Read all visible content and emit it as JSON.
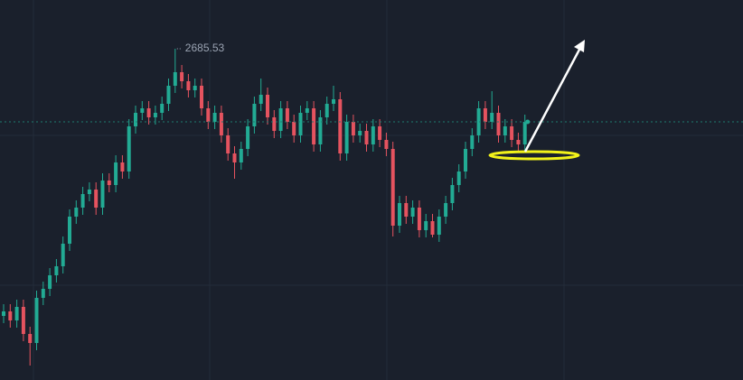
{
  "chart_data": {
    "type": "candlestick",
    "up_color": "#22ab94",
    "down_color": "#e5535f",
    "ylim": [
      2593.78,
      2699.03
    ],
    "open": [
      2611.53,
      2612.78,
      2610.28,
      2614.03,
      2606.53,
      2604.03,
      2616.53,
      2619.03,
      2622.78,
      2625.28,
      2631.53,
      2639.03,
      2641.53,
      2645.28,
      2646.53,
      2641.53,
      2649.03,
      2647.78,
      2654.03,
      2651.53,
      2664.03,
      2667.78,
      2669.03,
      2666.53,
      2667.78,
      2670.28,
      2675.28,
      2679.03,
      2676.53,
      2674.03,
      2675.28,
      2669.03,
      2665.28,
      2667.78,
      2661.53,
      2656.53,
      2654.03,
      2657.78,
      2664.03,
      2670.28,
      2672.78,
      2666.53,
      2662.78,
      2669.03,
      2665.28,
      2661.53,
      2667.78,
      2669.03,
      2659.03,
      2666.53,
      2670.28,
      2671.53,
      2656.53,
      2665.28,
      2661.53,
      2662.78,
      2659.03,
      2664.03,
      2660.28,
      2657.78,
      2636.53,
      2642.78,
      2639.03,
      2641.53,
      2635.28,
      2637.78,
      2634.03,
      2639.03,
      2642.78,
      2647.78,
      2651.53,
      2657.78,
      2661.53,
      2669.03,
      2665.28,
      2667.78,
      2661.53,
      2664.03,
      2660.28,
      2659.03
    ],
    "high": [
      2614.78,
      2614.78,
      2616.03,
      2616.03,
      2608.53,
      2618.53,
      2621.03,
      2624.78,
      2627.28,
      2633.53,
      2641.03,
      2643.53,
      2647.28,
      2648.53,
      2648.53,
      2651.03,
      2651.03,
      2656.03,
      2656.03,
      2666.03,
      2669.78,
      2671.03,
      2671.03,
      2669.78,
      2672.28,
      2677.28,
      2685.53,
      2681.03,
      2678.53,
      2677.28,
      2677.28,
      2671.03,
      2669.78,
      2669.78,
      2663.53,
      2658.53,
      2659.78,
      2666.03,
      2672.28,
      2677.28,
      2674.78,
      2668.53,
      2671.03,
      2671.03,
      2667.28,
      2669.78,
      2671.03,
      2671.03,
      2668.53,
      2672.28,
      2675.28,
      2673.53,
      2667.28,
      2667.28,
      2664.78,
      2664.78,
      2666.03,
      2666.03,
      2662.28,
      2659.78,
      2644.78,
      2644.78,
      2643.53,
      2643.53,
      2639.78,
      2639.78,
      2641.03,
      2644.78,
      2649.78,
      2653.53,
      2659.78,
      2663.53,
      2671.03,
      2671.03,
      2673.78,
      2669.78,
      2666.03,
      2666.03,
      2662.28,
      2667.28
    ],
    "low": [
      2609.53,
      2608.28,
      2608.28,
      2604.53,
      2597.78,
      2602.03,
      2614.53,
      2617.03,
      2620.78,
      2623.28,
      2629.53,
      2637.03,
      2639.53,
      2643.28,
      2639.53,
      2639.53,
      2645.78,
      2645.78,
      2649.53,
      2649.53,
      2662.03,
      2665.78,
      2664.53,
      2664.53,
      2665.78,
      2668.28,
      2673.28,
      2674.53,
      2672.03,
      2672.03,
      2667.03,
      2663.28,
      2663.28,
      2659.53,
      2654.53,
      2649.53,
      2652.03,
      2655.78,
      2662.03,
      2668.28,
      2664.53,
      2660.78,
      2660.78,
      2663.28,
      2659.53,
      2659.53,
      2665.78,
      2657.03,
      2657.03,
      2664.53,
      2668.28,
      2654.53,
      2654.53,
      2659.53,
      2659.53,
      2657.03,
      2657.03,
      2658.28,
      2655.78,
      2633.53,
      2634.53,
      2637.03,
      2637.03,
      2633.28,
      2633.28,
      2633.28,
      2632.03,
      2637.03,
      2640.78,
      2645.78,
      2649.53,
      2655.78,
      2659.53,
      2663.28,
      2663.28,
      2659.53,
      2659.53,
      2658.28,
      2657.03,
      2657.03
    ],
    "close": [
      2612.78,
      2610.28,
      2614.03,
      2606.53,
      2604.03,
      2616.53,
      2619.03,
      2622.78,
      2625.28,
      2631.53,
      2639.03,
      2641.53,
      2645.28,
      2646.53,
      2641.53,
      2649.03,
      2647.78,
      2654.03,
      2651.53,
      2664.03,
      2667.78,
      2669.03,
      2666.53,
      2667.78,
      2670.28,
      2675.28,
      2679.03,
      2676.53,
      2674.03,
      2675.28,
      2669.03,
      2665.28,
      2667.78,
      2661.53,
      2656.53,
      2654.03,
      2657.78,
      2664.03,
      2670.28,
      2672.78,
      2666.53,
      2662.78,
      2669.03,
      2665.28,
      2661.53,
      2667.78,
      2669.03,
      2659.03,
      2666.53,
      2670.28,
      2671.53,
      2656.53,
      2665.28,
      2661.53,
      2662.78,
      2659.03,
      2664.03,
      2660.28,
      2657.78,
      2636.53,
      2642.78,
      2639.03,
      2641.53,
      2635.28,
      2637.78,
      2634.03,
      2639.03,
      2642.78,
      2647.78,
      2651.53,
      2657.78,
      2661.53,
      2669.03,
      2665.28,
      2667.78,
      2661.53,
      2664.03,
      2660.28,
      2659.03,
      2665.28
    ]
  }
}
